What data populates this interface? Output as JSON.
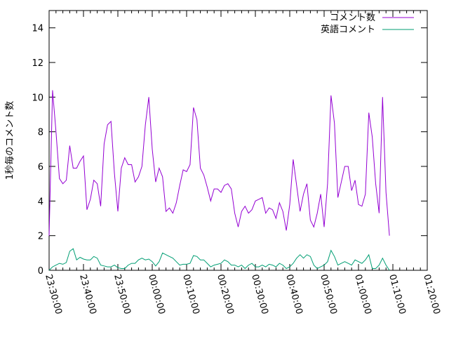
{
  "chart_data": {
    "type": "line",
    "title": "",
    "xlabel": "",
    "ylabel": "1秒毎のコメント数",
    "x_ticks": [
      "23:30:00",
      "23:40:00",
      "23:50:00",
      "00:00:00",
      "00:10:00",
      "00:20:00",
      "00:30:00",
      "00:40:00",
      "00:50:00",
      "01:00:00",
      "01:10:00",
      "01:20:00"
    ],
    "x_range_minutes": [
      0,
      110
    ],
    "y_ticks": [
      0,
      2,
      4,
      6,
      8,
      10,
      12,
      14
    ],
    "ylim": [
      0,
      15
    ],
    "grid": false,
    "legend_position": "top-right",
    "series": [
      {
        "name": "コメント数",
        "color": "#9400d3",
        "points": [
          [
            0,
            2.0
          ],
          [
            1,
            10.4
          ],
          [
            2,
            8.0
          ],
          [
            3,
            5.3
          ],
          [
            4,
            5.0
          ],
          [
            5,
            5.2
          ],
          [
            6,
            7.2
          ],
          [
            7,
            5.9
          ],
          [
            8,
            5.9
          ],
          [
            9,
            6.3
          ],
          [
            10,
            6.6
          ],
          [
            11,
            3.5
          ],
          [
            12,
            4.1
          ],
          [
            13,
            5.2
          ],
          [
            14,
            5.0
          ],
          [
            15,
            3.7
          ],
          [
            16,
            7.3
          ],
          [
            17,
            8.4
          ],
          [
            18,
            8.6
          ],
          [
            19,
            5.6
          ],
          [
            20,
            3.4
          ],
          [
            21,
            5.9
          ],
          [
            22,
            6.5
          ],
          [
            23,
            6.1
          ],
          [
            24,
            6.1
          ],
          [
            25,
            5.1
          ],
          [
            26,
            5.4
          ],
          [
            27,
            6.0
          ],
          [
            28,
            8.4
          ],
          [
            29,
            10.0
          ],
          [
            30,
            7.0
          ],
          [
            31,
            5.1
          ],
          [
            32,
            5.9
          ],
          [
            33,
            5.4
          ],
          [
            34,
            3.4
          ],
          [
            35,
            3.6
          ],
          [
            36,
            3.3
          ],
          [
            37,
            3.9
          ],
          [
            38,
            4.9
          ],
          [
            39,
            5.8
          ],
          [
            40,
            5.7
          ],
          [
            41,
            6.1
          ],
          [
            42,
            9.4
          ],
          [
            43,
            8.7
          ],
          [
            44,
            5.9
          ],
          [
            45,
            5.5
          ],
          [
            46,
            4.8
          ],
          [
            47,
            4.0
          ],
          [
            48,
            4.7
          ],
          [
            49,
            4.7
          ],
          [
            50,
            4.5
          ],
          [
            51,
            4.9
          ],
          [
            52,
            5.0
          ],
          [
            53,
            4.7
          ],
          [
            54,
            3.3
          ],
          [
            55,
            2.5
          ],
          [
            56,
            3.4
          ],
          [
            57,
            3.7
          ],
          [
            58,
            3.3
          ],
          [
            59,
            3.5
          ],
          [
            60,
            4.0
          ],
          [
            61,
            4.1
          ],
          [
            62,
            4.2
          ],
          [
            63,
            3.3
          ],
          [
            64,
            3.6
          ],
          [
            65,
            3.5
          ],
          [
            66,
            3.0
          ],
          [
            67,
            3.9
          ],
          [
            68,
            3.4
          ],
          [
            69,
            2.3
          ],
          [
            70,
            3.8
          ],
          [
            71,
            6.4
          ],
          [
            72,
            4.9
          ],
          [
            73,
            3.4
          ],
          [
            74,
            4.4
          ],
          [
            75,
            5.0
          ],
          [
            76,
            2.9
          ],
          [
            77,
            2.5
          ],
          [
            78,
            3.3
          ],
          [
            79,
            4.4
          ],
          [
            80,
            2.5
          ],
          [
            81,
            5.0
          ],
          [
            82,
            10.1
          ],
          [
            83,
            8.5
          ],
          [
            84,
            4.2
          ],
          [
            85,
            5.1
          ],
          [
            86,
            6.0
          ],
          [
            87,
            6.0
          ],
          [
            88,
            4.6
          ],
          [
            89,
            5.2
          ],
          [
            90,
            3.8
          ],
          [
            91,
            3.7
          ],
          [
            92,
            4.4
          ],
          [
            93,
            9.1
          ],
          [
            94,
            7.7
          ],
          [
            95,
            5.0
          ],
          [
            96,
            3.3
          ],
          [
            97,
            10.0
          ],
          [
            98,
            4.5
          ],
          [
            99,
            2.0
          ]
        ]
      },
      {
        "name": "英語コメント",
        "color": "#009e73",
        "points": [
          [
            0,
            0.0
          ],
          [
            1,
            0.2
          ],
          [
            2,
            0.3
          ],
          [
            3,
            0.4
          ],
          [
            4,
            0.35
          ],
          [
            5,
            0.45
          ],
          [
            6,
            1.1
          ],
          [
            7,
            1.25
          ],
          [
            8,
            0.6
          ],
          [
            9,
            0.75
          ],
          [
            10,
            0.65
          ],
          [
            11,
            0.6
          ],
          [
            12,
            0.6
          ],
          [
            13,
            0.8
          ],
          [
            14,
            0.7
          ],
          [
            15,
            0.3
          ],
          [
            16,
            0.25
          ],
          [
            17,
            0.2
          ],
          [
            18,
            0.2
          ],
          [
            19,
            0.3
          ],
          [
            20,
            0.15
          ],
          [
            21,
            0.1
          ],
          [
            22,
            0.1
          ],
          [
            23,
            0.3
          ],
          [
            24,
            0.4
          ],
          [
            25,
            0.4
          ],
          [
            26,
            0.6
          ],
          [
            27,
            0.7
          ],
          [
            28,
            0.6
          ],
          [
            29,
            0.65
          ],
          [
            30,
            0.5
          ],
          [
            31,
            0.25
          ],
          [
            32,
            0.5
          ],
          [
            33,
            1.0
          ],
          [
            34,
            0.9
          ],
          [
            35,
            0.8
          ],
          [
            36,
            0.7
          ],
          [
            37,
            0.5
          ],
          [
            38,
            0.3
          ],
          [
            39,
            0.35
          ],
          [
            40,
            0.35
          ],
          [
            41,
            0.4
          ],
          [
            42,
            0.85
          ],
          [
            43,
            0.8
          ],
          [
            44,
            0.6
          ],
          [
            45,
            0.6
          ],
          [
            46,
            0.4
          ],
          [
            47,
            0.2
          ],
          [
            48,
            0.3
          ],
          [
            49,
            0.35
          ],
          [
            50,
            0.4
          ],
          [
            51,
            0.6
          ],
          [
            52,
            0.5
          ],
          [
            53,
            0.3
          ],
          [
            54,
            0.3
          ],
          [
            55,
            0.2
          ],
          [
            56,
            0.3
          ],
          [
            57,
            0.1
          ],
          [
            58,
            0.3
          ],
          [
            59,
            0.4
          ],
          [
            60,
            0.2
          ],
          [
            61,
            0.2
          ],
          [
            62,
            0.3
          ],
          [
            63,
            0.2
          ],
          [
            64,
            0.35
          ],
          [
            65,
            0.3
          ],
          [
            66,
            0.2
          ],
          [
            67,
            0.4
          ],
          [
            68,
            0.3
          ],
          [
            69,
            0.1
          ],
          [
            70,
            0.2
          ],
          [
            71,
            0.4
          ],
          [
            72,
            0.7
          ],
          [
            73,
            0.9
          ],
          [
            74,
            0.7
          ],
          [
            75,
            0.9
          ],
          [
            76,
            0.8
          ],
          [
            77,
            0.3
          ],
          [
            78,
            0.1
          ],
          [
            79,
            0.2
          ],
          [
            80,
            0.3
          ],
          [
            81,
            0.5
          ],
          [
            82,
            1.15
          ],
          [
            83,
            0.8
          ],
          [
            84,
            0.3
          ],
          [
            85,
            0.4
          ],
          [
            86,
            0.5
          ],
          [
            87,
            0.4
          ],
          [
            88,
            0.3
          ],
          [
            89,
            0.6
          ],
          [
            90,
            0.5
          ],
          [
            91,
            0.4
          ],
          [
            92,
            0.6
          ],
          [
            93,
            0.9
          ],
          [
            94,
            0.1
          ],
          [
            95,
            0.1
          ],
          [
            96,
            0.3
          ],
          [
            97,
            0.7
          ],
          [
            98,
            0.3
          ],
          [
            99,
            0.0
          ]
        ]
      }
    ]
  }
}
